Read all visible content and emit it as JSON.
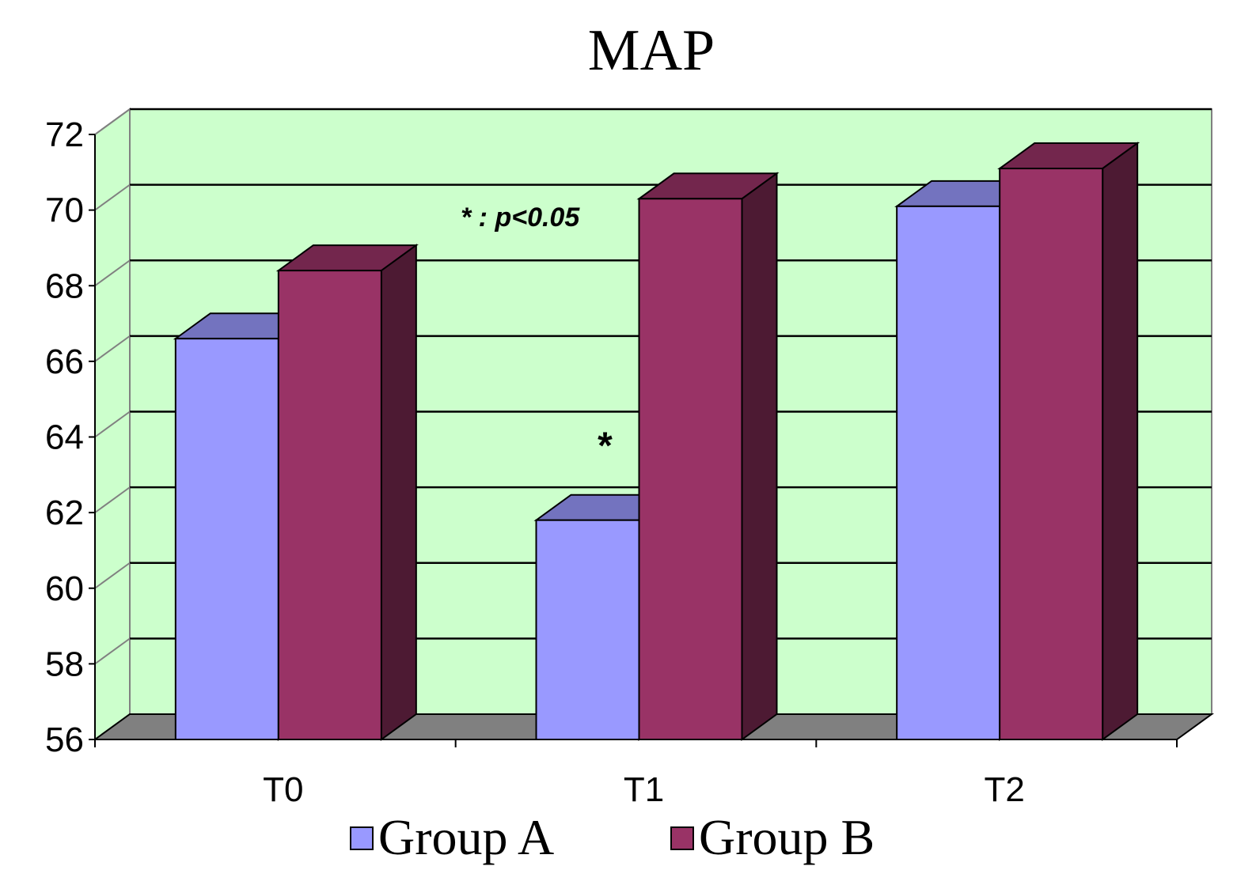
{
  "chart_data": {
    "type": "bar",
    "title": "MAP",
    "categories": [
      "T0",
      "T1",
      "T2"
    ],
    "series": [
      {
        "name": "Group A",
        "values": [
          66.6,
          61.8,
          70.1
        ],
        "color": "#9999ff"
      },
      {
        "name": "Group B",
        "values": [
          68.4,
          70.3,
          71.1
        ],
        "color": "#993366"
      }
    ],
    "ylim": [
      56,
      72
    ],
    "yticks": [
      56,
      58,
      60,
      62,
      64,
      66,
      68,
      70,
      72
    ],
    "grid": true,
    "background_color": "#ccffcc",
    "floor_color": "#808080",
    "legend_position": "bottom",
    "annotations": [
      {
        "text": "* : p<0.05"
      },
      {
        "text": "*",
        "category": "T1",
        "series": "Group A"
      }
    ]
  }
}
